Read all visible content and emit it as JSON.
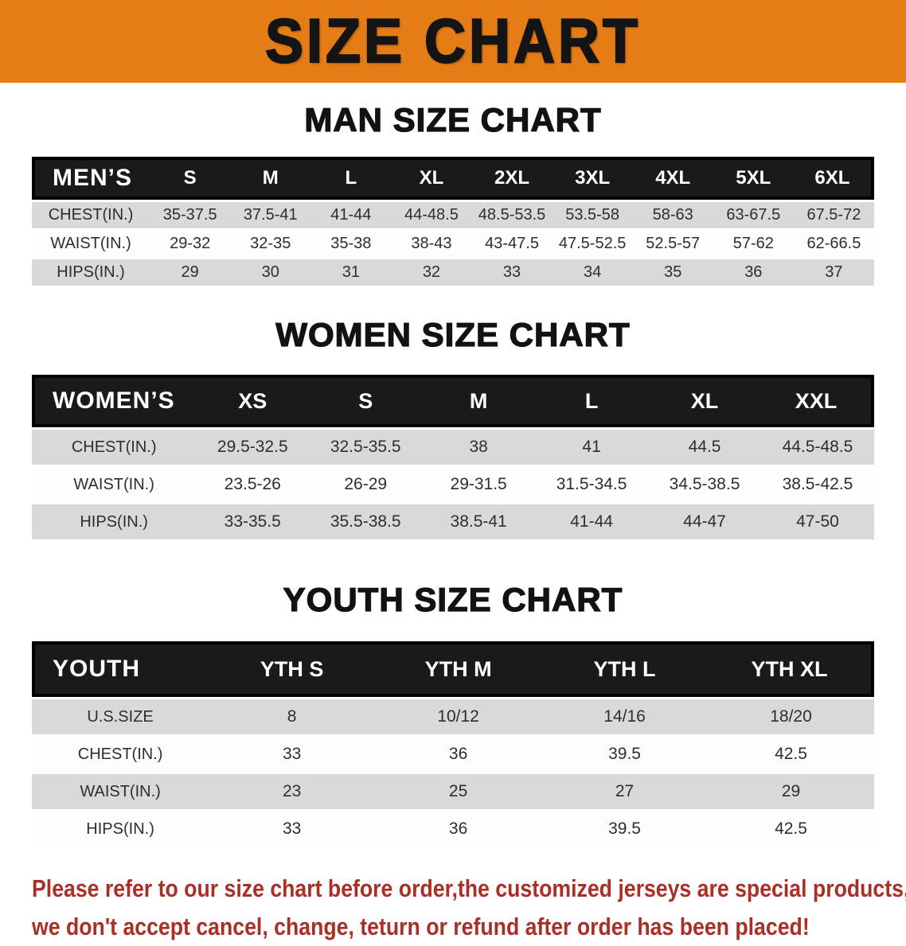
{
  "banner": {
    "title": "SIZE CHART",
    "bg_color": "#E57D17",
    "text_color": "#141414"
  },
  "colors": {
    "table_header_bg": "#1a1a1a",
    "row_gray": "#d9d9d9",
    "row_white": "#ffffff",
    "disclaimer_red": "#AC2F27"
  },
  "sections": [
    {
      "heading": "MAN SIZE CHART",
      "table": {
        "header_label": "MEN’S",
        "columns": [
          "S",
          "M",
          "L",
          "XL",
          "2XL",
          "3XL",
          "4XL",
          "5XL",
          "6XL"
        ],
        "rows": [
          {
            "label": "CHEST(IN.)",
            "values": [
              "35-37.5",
              "37.5-41",
              "41-44",
              "44-48.5",
              "48.5-53.5",
              "53.5-58",
              "58-63",
              "63-67.5",
              "67.5-72"
            ]
          },
          {
            "label": "WAIST(IN.)",
            "values": [
              "29-32",
              "32-35",
              "35-38",
              "38-43",
              "43-47.5",
              "47.5-52.5",
              "52.5-57",
              "57-62",
              "62-66.5"
            ]
          },
          {
            "label": "HIPS(IN.)",
            "values": [
              "29",
              "30",
              "31",
              "32",
              "33",
              "34",
              "35",
              "36",
              "37"
            ]
          }
        ]
      }
    },
    {
      "heading": "WOMEN SIZE CHART",
      "table": {
        "header_label": "WOMEN’S",
        "columns": [
          "XS",
          "S",
          "M",
          "L",
          "XL",
          "XXL"
        ],
        "rows": [
          {
            "label": "CHEST(IN.)",
            "values": [
              "29.5-32.5",
              "32.5-35.5",
              "38",
              "41",
              "44.5",
              "44.5-48.5"
            ]
          },
          {
            "label": "WAIST(IN.)",
            "values": [
              "23.5-26",
              "26-29",
              "29-31.5",
              "31.5-34.5",
              "34.5-38.5",
              "38.5-42.5"
            ]
          },
          {
            "label": "HIPS(IN.)",
            "values": [
              "33-35.5",
              "35.5-38.5",
              "38.5-41",
              "41-44",
              "44-47",
              "47-50"
            ]
          }
        ]
      }
    },
    {
      "heading": "YOUTH SIZE CHART",
      "table": {
        "header_label": "YOUTH",
        "columns": [
          "YTH S",
          "YTH M",
          "YTH L",
          "YTH XL"
        ],
        "rows": [
          {
            "label": "U.S.SIZE",
            "values": [
              "8",
              "10/12",
              "14/16",
              "18/20"
            ]
          },
          {
            "label": "CHEST(IN.)",
            "values": [
              "33",
              "36",
              "39.5",
              "42.5"
            ]
          },
          {
            "label": "WAIST(IN.)",
            "values": [
              "23",
              "25",
              "27",
              "29"
            ]
          },
          {
            "label": "HIPS(IN.)",
            "values": [
              "33",
              "36",
              "39.5",
              "42.5"
            ]
          }
        ]
      }
    }
  ],
  "disclaimer": {
    "line1": "Please refer to our size chart before order,the customized jerseys are special products,",
    "line2": "we don't accept cancel, change, teturn or refund after order has been placed!"
  }
}
